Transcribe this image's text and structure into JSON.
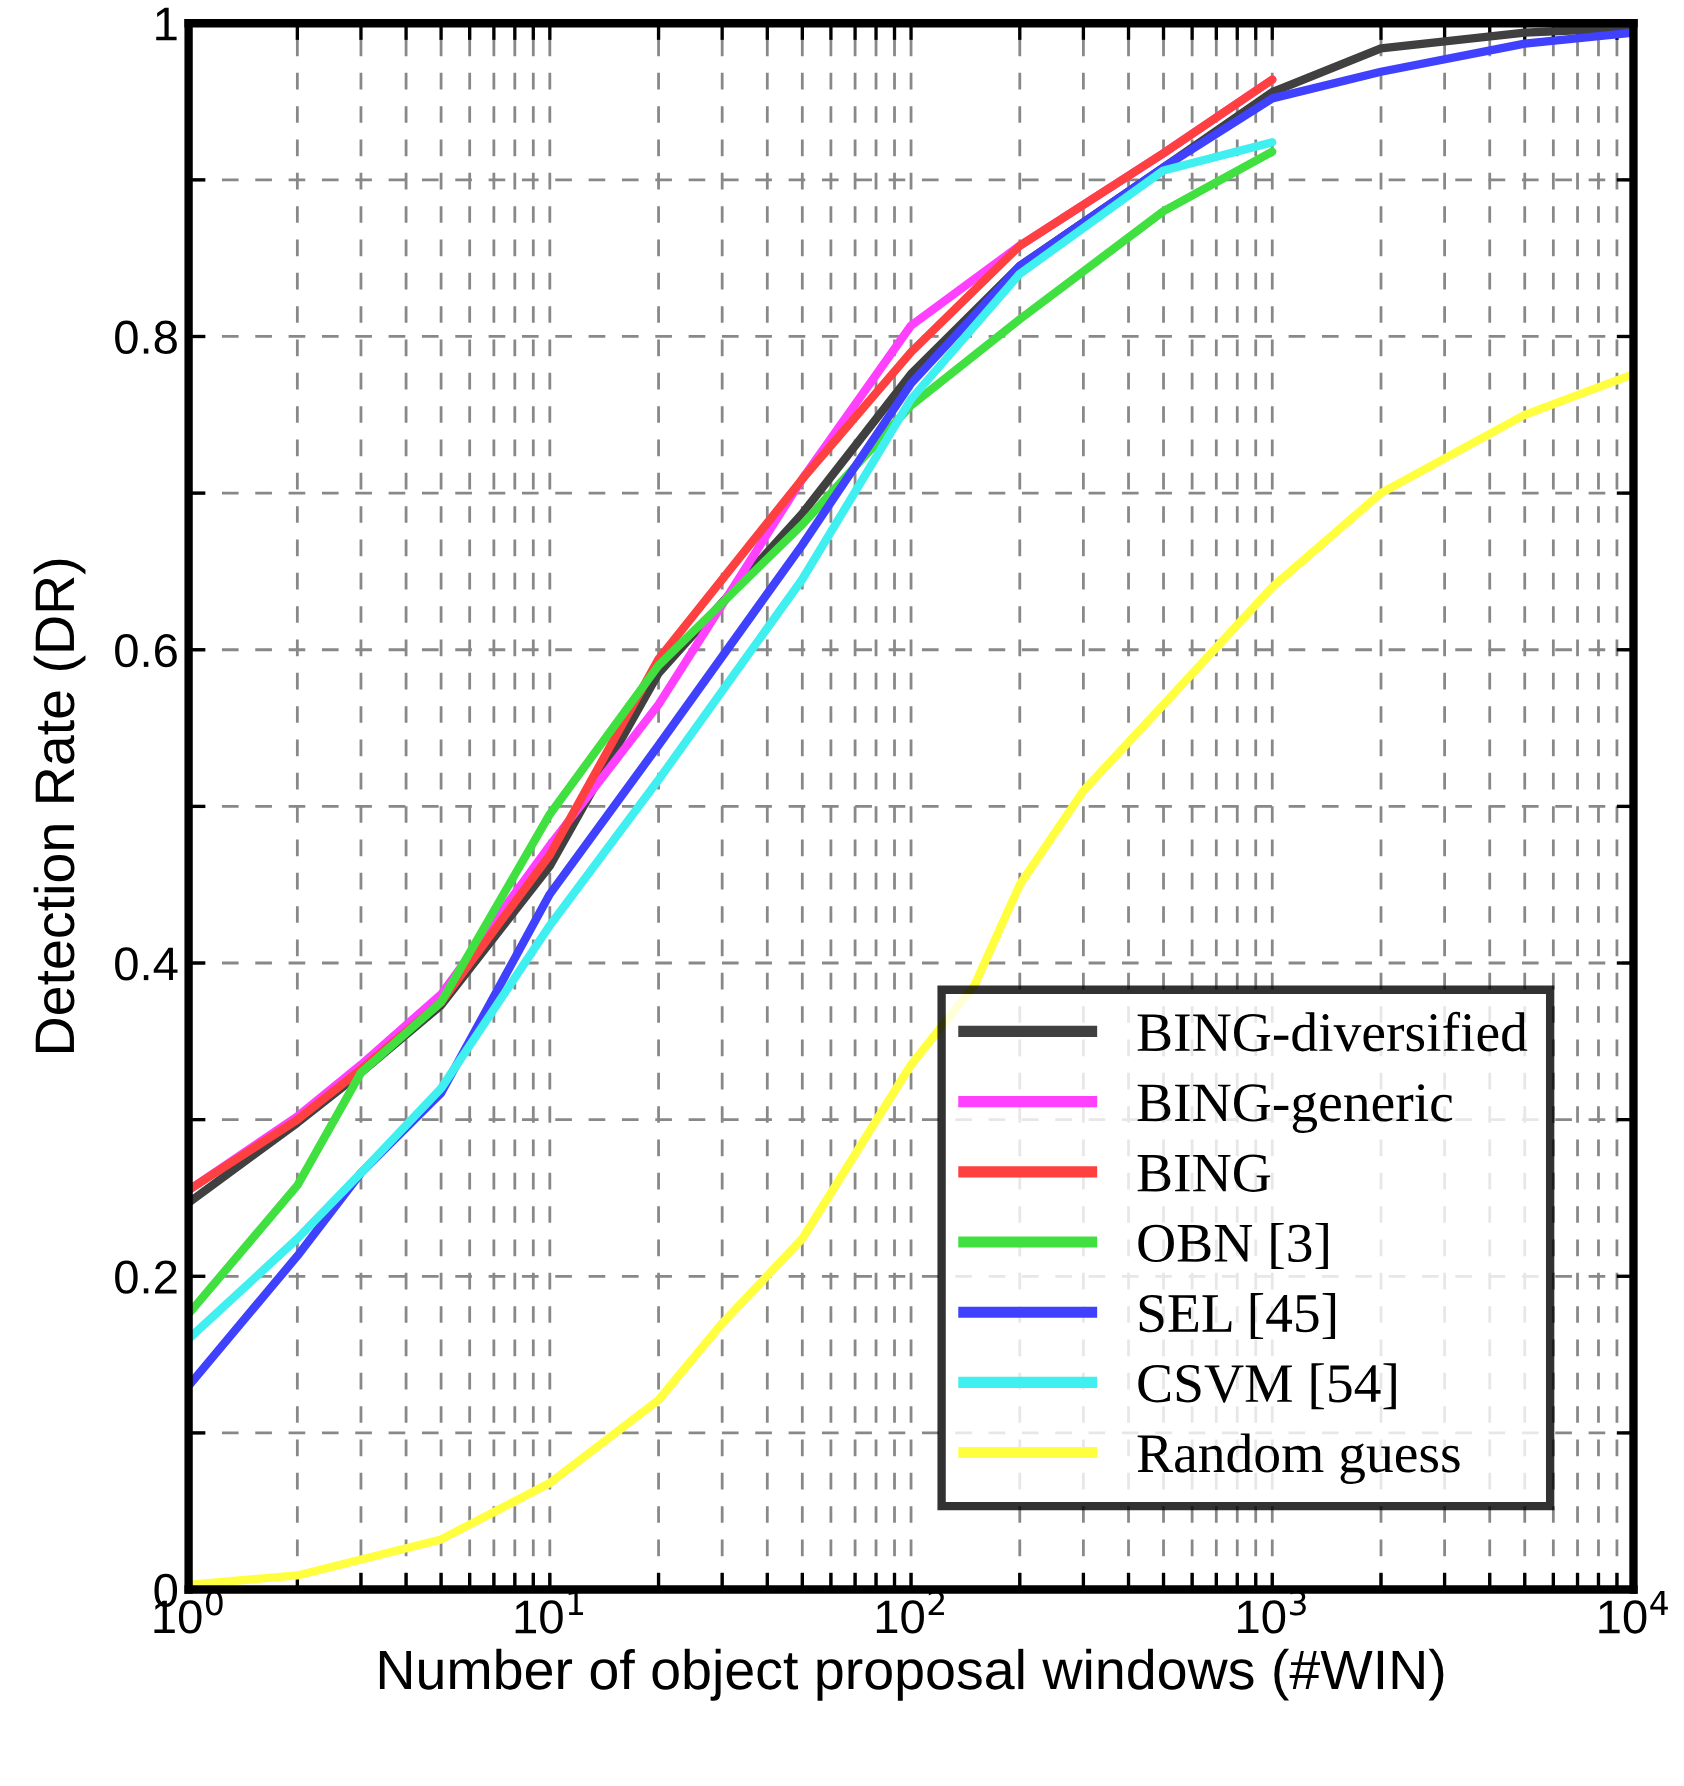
{
  "chart_data": {
    "type": "line",
    "xlabel": "Number of object proposal windows (#WIN)",
    "ylabel": "Detection Rate (DR)",
    "log": "x",
    "xlim": [
      1,
      10000
    ],
    "ylim": [
      0,
      1
    ],
    "xticks": [
      {
        "value": 1,
        "label": "10$^{0}$"
      },
      {
        "value": 2,
        "label": null
      },
      {
        "value": 3,
        "label": null
      },
      {
        "value": 4,
        "label": null
      },
      {
        "value": 5,
        "label": null
      },
      {
        "value": 6,
        "label": null
      },
      {
        "value": 7,
        "label": null
      },
      {
        "value": 8,
        "label": null
      },
      {
        "value": 9,
        "label": null
      },
      {
        "value": 10,
        "label": "10$^{1}$"
      },
      {
        "value": 20,
        "label": null
      },
      {
        "value": 30,
        "label": null
      },
      {
        "value": 40,
        "label": null
      },
      {
        "value": 50,
        "label": null
      },
      {
        "value": 60,
        "label": null
      },
      {
        "value": 70,
        "label": null
      },
      {
        "value": 80,
        "label": null
      },
      {
        "value": 90,
        "label": null
      },
      {
        "value": 100,
        "label": "10$^{2}$"
      },
      {
        "value": 200,
        "label": null
      },
      {
        "value": 300,
        "label": null
      },
      {
        "value": 400,
        "label": null
      },
      {
        "value": 500,
        "label": null
      },
      {
        "value": 600,
        "label": null
      },
      {
        "value": 700,
        "label": null
      },
      {
        "value": 800,
        "label": null
      },
      {
        "value": 900,
        "label": null
      },
      {
        "value": 1000,
        "label": "10$^{3}$"
      },
      {
        "value": 2000,
        "label": null
      },
      {
        "value": 3000,
        "label": null
      },
      {
        "value": 4000,
        "label": null
      },
      {
        "value": 5000,
        "label": null
      },
      {
        "value": 6000,
        "label": null
      },
      {
        "value": 7000,
        "label": null
      },
      {
        "value": 8000,
        "label": null
      },
      {
        "value": 9000,
        "label": null
      },
      {
        "value": 10000,
        "label": "10$^{4}$"
      }
    ],
    "yticks": [
      0,
      {
        "value": 0.1,
        "label": null
      },
      0.2,
      {
        "value": 0.3,
        "label": null
      },
      0.4,
      {
        "value": 0.5,
        "label": null
      },
      0.6,
      {
        "value": 0.7,
        "label": null
      },
      0.8,
      {
        "value": 0.9,
        "label": null
      },
      1
    ],
    "grid": true,
    "legend": "bottom right",
    "line_style": "solid",
    "marker": "none",
    "series": [
      {
        "name": "BING-diversified",
        "color": "#404040",
        "x": [
          1,
          2,
          3,
          5,
          10,
          20,
          50,
          100,
          200,
          500,
          1000,
          2000,
          5000,
          10000
        ],
        "values": [
          0.247,
          0.298,
          0.33,
          0.373,
          0.462,
          0.585,
          0.687,
          0.776,
          0.845,
          0.908,
          0.956,
          0.984,
          0.994,
          0.997
        ]
      },
      {
        "name": "BING-generic",
        "color": "#ff40ff",
        "x": [
          1,
          2,
          3,
          5,
          10,
          20,
          50,
          100,
          200,
          500,
          1000
        ],
        "values": [
          0.255,
          0.302,
          0.335,
          0.38,
          0.475,
          0.565,
          0.709,
          0.807,
          0.858,
          0.917,
          0.964
        ]
      },
      {
        "name": "BING",
        "color": "#ff4040",
        "x": [
          1,
          2,
          3,
          5,
          10,
          20,
          50,
          100,
          200,
          500,
          1000
        ],
        "values": [
          0.255,
          0.3,
          0.332,
          0.375,
          0.469,
          0.594,
          0.709,
          0.79,
          0.858,
          0.917,
          0.964
        ]
      },
      {
        "name": "OBN [3]",
        "color": "#40e040",
        "x": [
          1,
          2,
          3,
          5,
          10,
          20,
          50,
          100,
          200,
          500,
          1000
        ],
        "values": [
          0.176,
          0.258,
          0.33,
          0.375,
          0.495,
          0.59,
          0.68,
          0.756,
          0.811,
          0.88,
          0.918
        ]
      },
      {
        "name": "SEL [45]",
        "color": "#4040ff",
        "x": [
          1,
          2,
          3,
          5,
          10,
          20,
          50,
          100,
          200,
          500,
          1000,
          2000,
          5000,
          10000
        ],
        "values": [
          0.13,
          0.213,
          0.266,
          0.317,
          0.444,
          0.539,
          0.667,
          0.77,
          0.845,
          0.908,
          0.952,
          0.969,
          0.987,
          0.994
        ]
      },
      {
        "name": "CSVM [54]",
        "color": "#40f0f0",
        "x": [
          1,
          2,
          3,
          5,
          10,
          20,
          50,
          100,
          200,
          500,
          1000
        ],
        "values": [
          0.16,
          0.224,
          0.266,
          0.32,
          0.424,
          0.517,
          0.645,
          0.76,
          0.84,
          0.906,
          0.924
        ]
      },
      {
        "name": "Random guess",
        "color": "#ffff40",
        "x": [
          1,
          2,
          5,
          10,
          20,
          30,
          50,
          100,
          150,
          200,
          300,
          500,
          1000,
          2000,
          5000,
          10000
        ],
        "values": [
          0.003,
          0.009,
          0.032,
          0.068,
          0.121,
          0.17,
          0.224,
          0.335,
          0.386,
          0.45,
          0.51,
          0.565,
          0.64,
          0.7,
          0.75,
          0.776
        ]
      }
    ]
  }
}
